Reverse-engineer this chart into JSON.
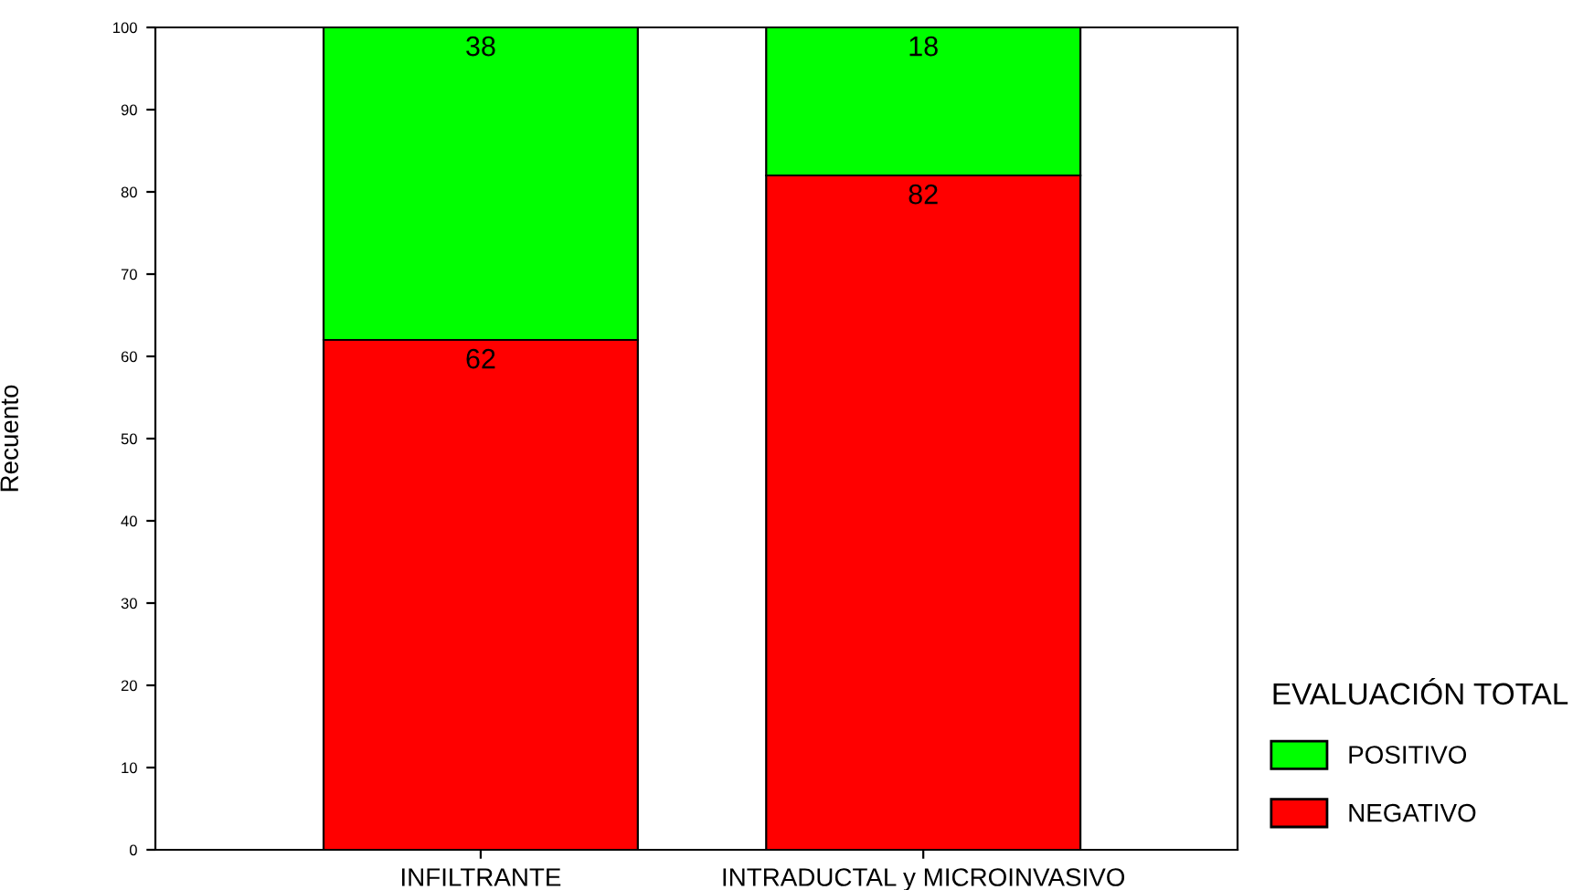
{
  "chart_data": {
    "type": "bar",
    "stacked": true,
    "ylabel": "Recuento",
    "legend_title": "EVALUACIÓN TOTAL",
    "categories": [
      "INFILTRANTE",
      "INTRADUCTAL y MICROINVASIVO"
    ],
    "series": [
      {
        "name": "NEGATIVO",
        "color": "#ff0000",
        "values": [
          62,
          82
        ]
      },
      {
        "name": "POSITIVO",
        "color": "#00ff00",
        "values": [
          38,
          18
        ]
      }
    ],
    "ylim": [
      0,
      100
    ],
    "yticks": [
      0,
      10,
      20,
      30,
      40,
      50,
      60,
      70,
      80,
      90,
      100
    ],
    "data_labels": true,
    "grid": false,
    "legend": "bottom right"
  }
}
